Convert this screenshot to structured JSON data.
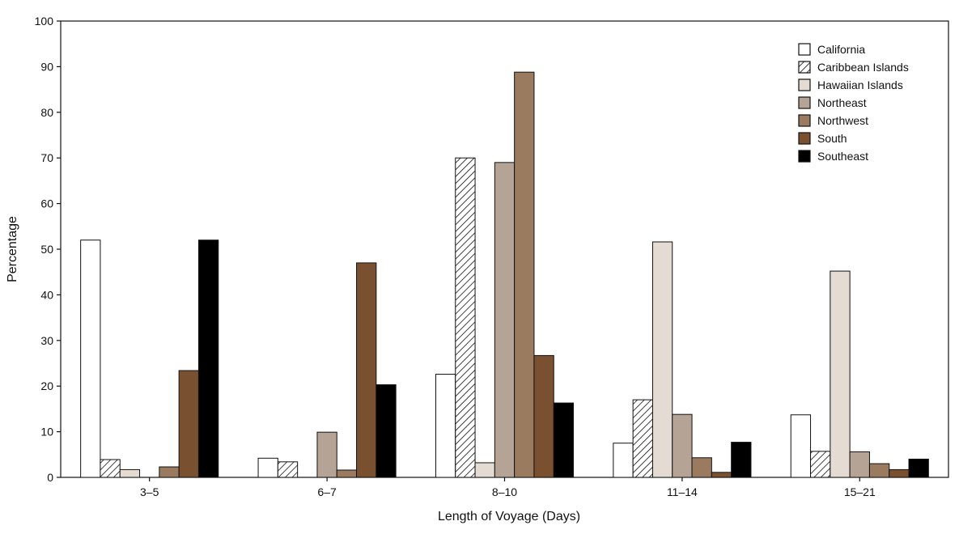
{
  "chart_data": {
    "type": "bar",
    "xlabel": "Length of Voyage (Days)",
    "ylabel": "Percentage",
    "ylim": [
      0,
      100
    ],
    "yticks": [
      0,
      10,
      20,
      30,
      40,
      50,
      60,
      70,
      80,
      90,
      100
    ],
    "categories": [
      "3–5",
      "6–7",
      "8–10",
      "11–14",
      "15–21"
    ],
    "legend_position": "top-right",
    "grid": false,
    "series": [
      {
        "name": "California",
        "color": "#ffffff",
        "pattern": "solid",
        "values": [
          52,
          4.2,
          22.6,
          7.5,
          13.7
        ]
      },
      {
        "name": "Caribbean Islands",
        "color": "#ffffff",
        "pattern": "hatch",
        "values": [
          3.9,
          3.4,
          70,
          17,
          5.7
        ]
      },
      {
        "name": "Hawaiian Islands",
        "color": "#e4dbd3",
        "pattern": "solid",
        "values": [
          1.7,
          0,
          3.2,
          51.6,
          45.2
        ]
      },
      {
        "name": "Northeast",
        "color": "#b5a495",
        "pattern": "solid",
        "values": [
          0,
          9.9,
          69,
          13.8,
          5.6
        ]
      },
      {
        "name": "Northwest",
        "color": "#9a7b60",
        "pattern": "solid",
        "values": [
          2.3,
          1.6,
          88.8,
          4.3,
          3
        ]
      },
      {
        "name": "South",
        "color": "#7a5130",
        "pattern": "solid",
        "values": [
          23.4,
          47,
          26.7,
          1.1,
          1.7
        ]
      },
      {
        "name": "Southeast",
        "color": "#000000",
        "pattern": "solid",
        "values": [
          52,
          20.3,
          16.3,
          7.7,
          4
        ]
      }
    ]
  }
}
